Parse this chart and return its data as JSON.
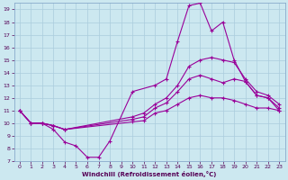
{
  "xlabel": "Windchill (Refroidissement éolien,°C)",
  "bg_color": "#cce8f0",
  "grid_color": "#aaccdd",
  "line_color": "#990099",
  "xlim": [
    -0.5,
    23.5
  ],
  "ylim": [
    7,
    19.5
  ],
  "xticks": [
    0,
    1,
    2,
    3,
    4,
    5,
    6,
    7,
    8,
    9,
    10,
    11,
    12,
    13,
    14,
    15,
    16,
    17,
    18,
    19,
    20,
    21,
    22,
    23
  ],
  "yticks": [
    7,
    8,
    9,
    10,
    11,
    12,
    13,
    14,
    15,
    16,
    17,
    18,
    19
  ],
  "line1_x": [
    0,
    1,
    2,
    3,
    4,
    5,
    6,
    7,
    8,
    10,
    12,
    13,
    14,
    15,
    16,
    17,
    18,
    19,
    20,
    21,
    22,
    23
  ],
  "line1_y": [
    11,
    10,
    10,
    9.5,
    8.5,
    8.2,
    7.3,
    7.3,
    8.6,
    12.5,
    13.0,
    13.5,
    16.5,
    19.3,
    19.5,
    17.3,
    18.0,
    15.0,
    13.3,
    12.2,
    12.0,
    11.2
  ],
  "line2_x": [
    0,
    1,
    2,
    3,
    4,
    10,
    11,
    12,
    13,
    14,
    15,
    16,
    17,
    18,
    19,
    20,
    21,
    22,
    23
  ],
  "line2_y": [
    11,
    10,
    10,
    9.8,
    9.5,
    10.5,
    10.8,
    11.5,
    12.0,
    13.0,
    14.5,
    15.0,
    15.2,
    15.0,
    14.8,
    13.5,
    12.5,
    12.2,
    11.5
  ],
  "line3_x": [
    0,
    1,
    2,
    3,
    4,
    10,
    11,
    12,
    13,
    14,
    15,
    16,
    17,
    18,
    19,
    20,
    21,
    22,
    23
  ],
  "line3_y": [
    11,
    10,
    10,
    9.8,
    9.5,
    10.3,
    10.5,
    11.2,
    11.6,
    12.5,
    13.5,
    13.8,
    13.5,
    13.2,
    13.5,
    13.3,
    12.2,
    12.0,
    11.0
  ],
  "line4_x": [
    0,
    1,
    2,
    3,
    4,
    10,
    11,
    12,
    13,
    14,
    15,
    16,
    17,
    18,
    19,
    20,
    21,
    22,
    23
  ],
  "line4_y": [
    11,
    10,
    10,
    9.8,
    9.5,
    10.1,
    10.2,
    10.8,
    11.0,
    11.5,
    12.0,
    12.2,
    12.0,
    12.0,
    11.8,
    11.5,
    11.2,
    11.2,
    11.0
  ]
}
